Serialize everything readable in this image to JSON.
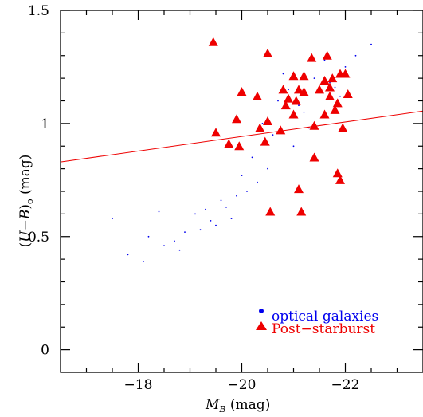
{
  "chart_data": {
    "type": "scatter",
    "xlabel": "M_B (mag)",
    "ylabel": "(U−B)o (mag)",
    "xlim": [
      -16.5,
      -23.5
    ],
    "ylim": [
      -0.1,
      1.5
    ],
    "x_ticks": [
      {
        "value": -18,
        "label": "−18"
      },
      {
        "value": -20,
        "label": "−20"
      },
      {
        "value": -22,
        "label": "−22"
      }
    ],
    "y_ticks": [
      {
        "value": 0,
        "label": "0"
      },
      {
        "value": 0.5,
        "label": "0.5"
      },
      {
        "value": 1,
        "label": "1"
      },
      {
        "value": 1.5,
        "label": "1.5"
      }
    ],
    "legend_position": "bottom-right",
    "colors": {
      "optical": "#0000ee",
      "post": "#ee0000",
      "line": "#ee0000"
    },
    "series": [
      {
        "name": "optical galaxies",
        "marker": "dot",
        "x": [
          -19.5,
          -19.3,
          -20.1,
          -18.7,
          -19.8,
          -20.5,
          -18.9,
          -19.6,
          -21.0,
          -20.3,
          -18.5,
          -19.1,
          -20.7,
          -21.4,
          -19.9,
          -18.2,
          -20.9,
          -22.0,
          -21.7,
          -21.2,
          -20.6,
          -19.4,
          -18.8,
          -22.2,
          -21.9,
          -21.3,
          -20.8,
          -20.2,
          -19.7,
          -17.8,
          -17.5,
          -18.1,
          -22.5,
          -21.6,
          -20.4,
          -19.2,
          -18.4,
          -20.0,
          -21.1,
          -21.8
        ],
        "y": [
          0.55,
          0.62,
          0.7,
          0.48,
          0.58,
          0.8,
          0.52,
          0.66,
          0.9,
          0.74,
          0.46,
          0.6,
          1.1,
          1.2,
          0.68,
          0.5,
          1.15,
          1.25,
          1.18,
          1.05,
          0.95,
          0.57,
          0.44,
          1.3,
          1.12,
          0.98,
          1.22,
          0.85,
          0.63,
          0.42,
          0.58,
          0.39,
          1.35,
          1.28,
          1.0,
          0.53,
          0.61,
          0.77,
          1.08,
          1.16
        ]
      },
      {
        "name": "Post−starburst",
        "marker": "triangle",
        "x": [
          -19.45,
          -20.5,
          -21.35,
          -21.2,
          -21.65,
          -21.0,
          -22.0,
          -20.0,
          -20.8,
          -20.3,
          -21.6,
          -21.5,
          -21.9,
          -21.05,
          -21.1,
          -21.85,
          -22.05,
          -20.9,
          -21.75,
          -21.7,
          -19.9,
          -20.35,
          -20.5,
          -20.75,
          -21.0,
          -20.45,
          -19.75,
          -19.5,
          -21.6,
          -21.4,
          -21.7,
          -20.85,
          -21.95,
          -21.4,
          -21.85,
          -21.9,
          -21.1,
          -20.55,
          -21.15,
          -21.8,
          -21.2,
          -19.95
        ],
        "y": [
          1.36,
          1.31,
          1.29,
          1.21,
          1.3,
          1.21,
          1.22,
          1.14,
          1.15,
          1.12,
          1.19,
          1.15,
          1.22,
          1.1,
          1.15,
          1.09,
          1.13,
          1.11,
          1.2,
          1.16,
          1.02,
          0.98,
          1.01,
          0.97,
          1.04,
          0.92,
          0.91,
          0.96,
          1.04,
          0.99,
          1.12,
          1.08,
          0.98,
          0.85,
          0.78,
          0.75,
          0.71,
          0.61,
          0.61,
          1.06,
          1.14,
          0.9
        ]
      }
    ],
    "fit_line": {
      "x": [
        -16.5,
        -23.5
      ],
      "y": [
        0.83,
        1.055
      ]
    },
    "legend": {
      "optical_label": "optical galaxies",
      "post_label": "Post−starburst"
    }
  }
}
